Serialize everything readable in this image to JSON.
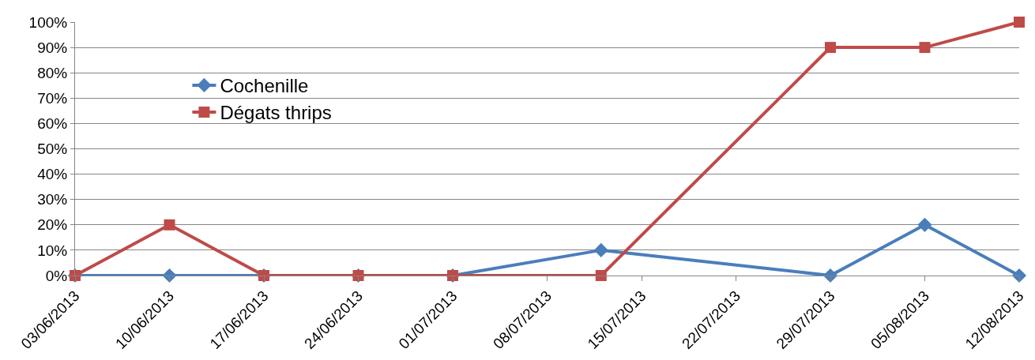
{
  "chart_data": {
    "type": "line",
    "x": [
      "2013-06-03",
      "2013-06-10",
      "2013-06-17",
      "2013-06-24",
      "2013-07-01",
      "2013-07-12",
      "2013-07-29",
      "2013-08-05",
      "2013-08-12"
    ],
    "series": [
      {
        "name": "Cochenille",
        "color": "#4a7ebb",
        "marker": "diamond",
        "values": [
          0,
          0,
          0,
          0,
          0,
          10,
          0,
          20,
          0
        ]
      },
      {
        "name": "Dégats thrips",
        "color": "#be4b48",
        "marker": "square",
        "values": [
          0,
          20,
          0,
          0,
          0,
          0,
          90,
          90,
          100
        ]
      }
    ],
    "xlim": [
      "2013-06-03",
      "2013-08-12"
    ],
    "xticks": [
      {
        "value": "2013-06-03",
        "label": "03/06/2013"
      },
      {
        "value": "2013-06-10",
        "label": "10/06/2013"
      },
      {
        "value": "2013-06-17",
        "label": "17/06/2013"
      },
      {
        "value": "2013-06-24",
        "label": "24/06/2013"
      },
      {
        "value": "2013-07-01",
        "label": "01/07/2013"
      },
      {
        "value": "2013-07-08",
        "label": "08/07/2013"
      },
      {
        "value": "2013-07-15",
        "label": "15/07/2013"
      },
      {
        "value": "2013-07-22",
        "label": "22/07/2013"
      },
      {
        "value": "2013-07-29",
        "label": "29/07/2013"
      },
      {
        "value": "2013-08-05",
        "label": "05/08/2013"
      },
      {
        "value": "2013-08-12",
        "label": "12/08/2013"
      }
    ],
    "ylim": [
      0,
      100
    ],
    "yticks": [
      {
        "value": 0,
        "label": "0%"
      },
      {
        "value": 10,
        "label": "10%"
      },
      {
        "value": 20,
        "label": "20%"
      },
      {
        "value": 30,
        "label": "30%"
      },
      {
        "value": 40,
        "label": "40%"
      },
      {
        "value": 50,
        "label": "50%"
      },
      {
        "value": 60,
        "label": "60%"
      },
      {
        "value": 70,
        "label": "70%"
      },
      {
        "value": 80,
        "label": "80%"
      },
      {
        "value": 90,
        "label": "90%"
      },
      {
        "value": 100,
        "label": "100%"
      }
    ],
    "grid": "y",
    "legend": "top left",
    "line_style": "solid"
  }
}
